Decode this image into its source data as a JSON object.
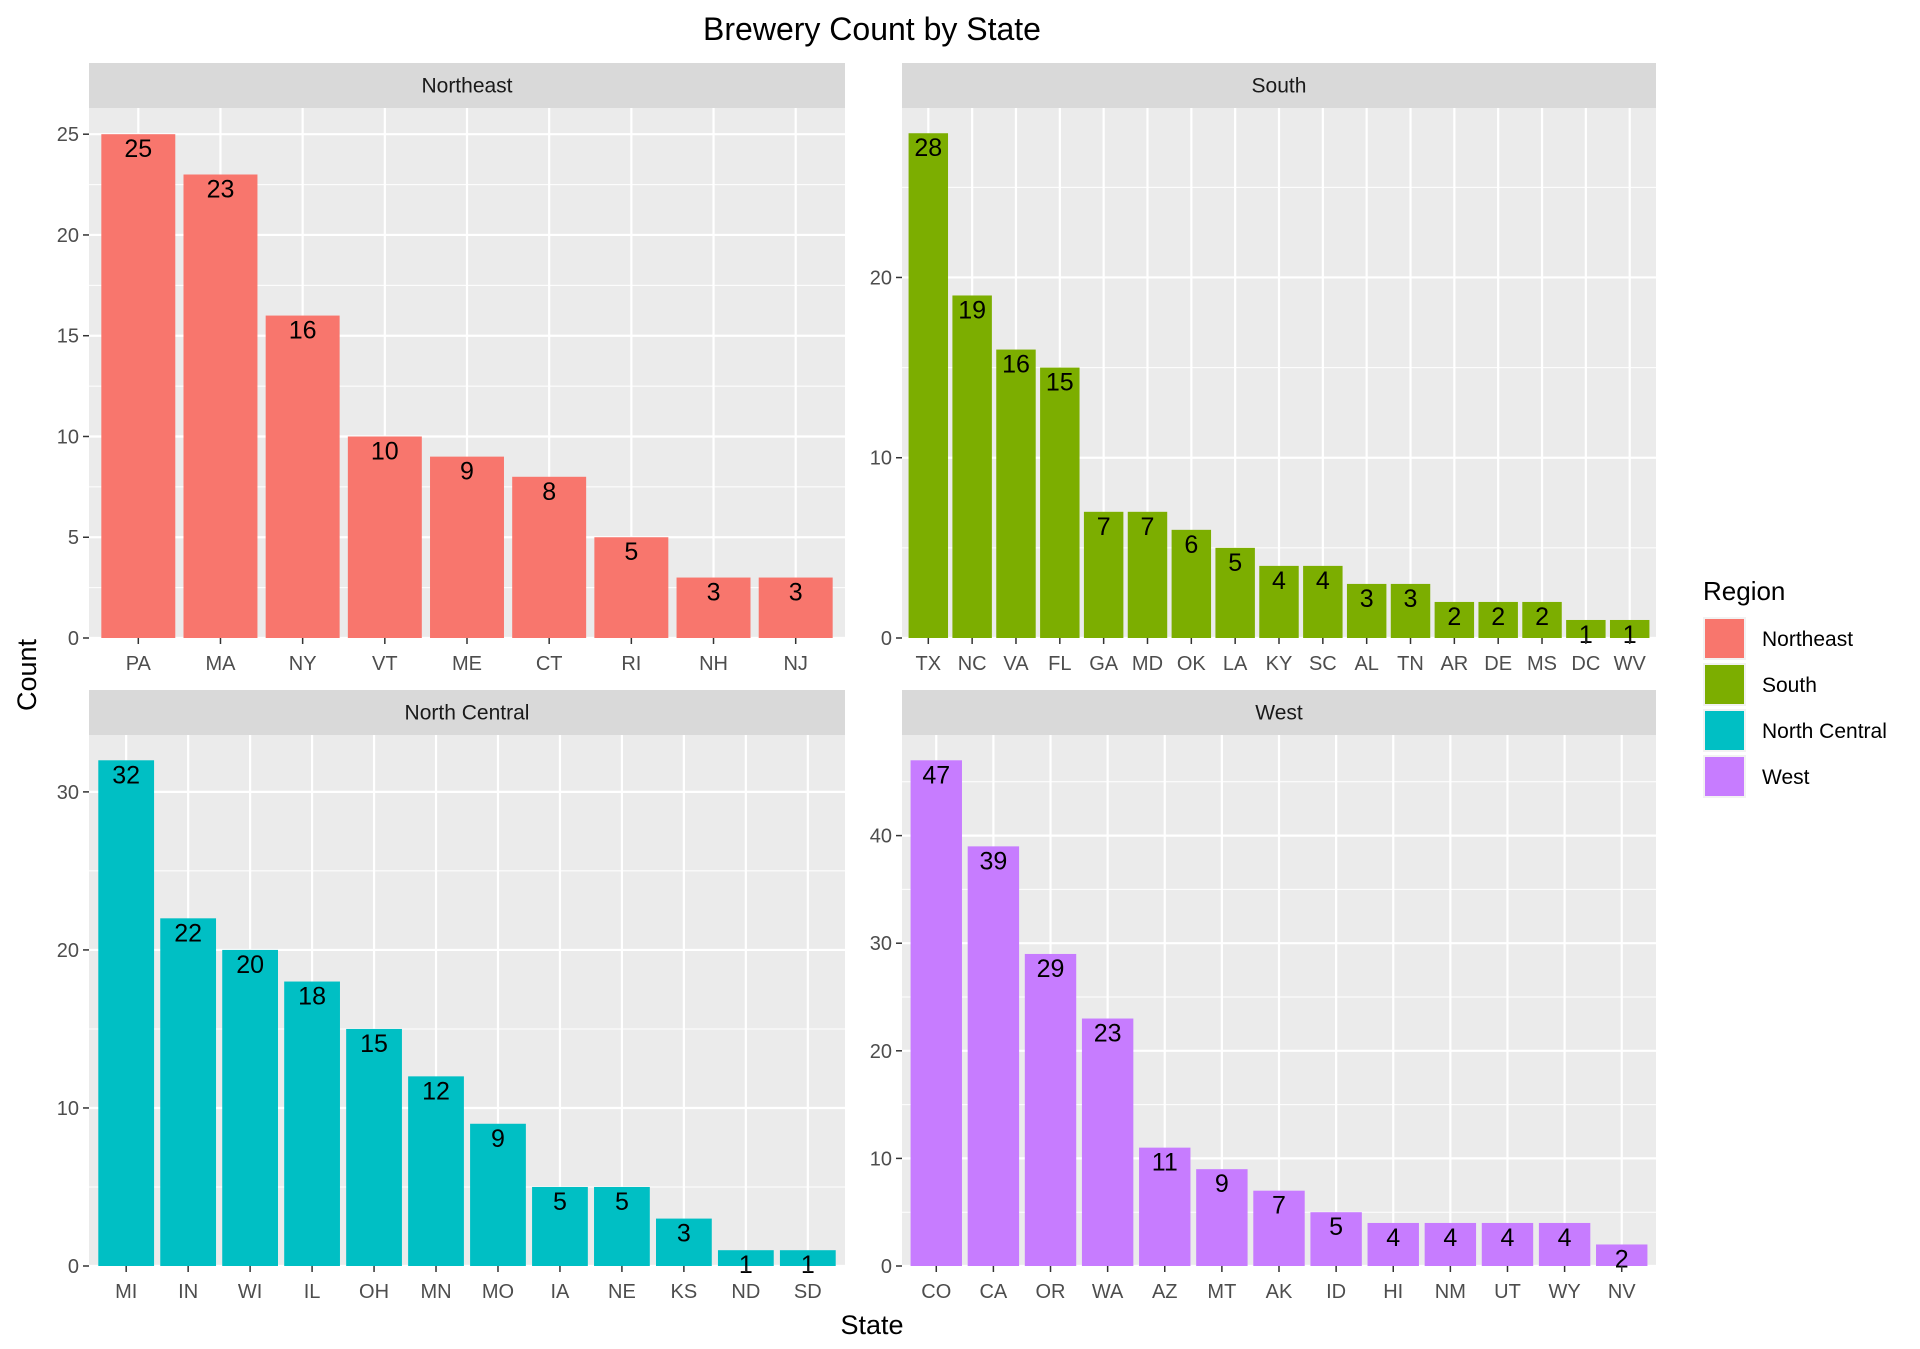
{
  "title": "Brewery Count by State",
  "xlabel": "State",
  "ylabel": "Count",
  "legend": {
    "title": "Region",
    "placement": "right",
    "items": [
      {
        "label": "Northeast",
        "color": "#F8766D"
      },
      {
        "label": "South",
        "color": "#7CAE00"
      },
      {
        "label": "North Central",
        "color": "#00BFC4"
      },
      {
        "label": "West",
        "color": "#C77CFF"
      }
    ]
  },
  "colors": {
    "panel_background": "#EBEBEB",
    "grid": "#FFFFFF",
    "strip_background": "#D9D9D9",
    "axis_text": "#4D4D4D"
  },
  "chart_data": [
    {
      "type": "bar",
      "title": "Northeast",
      "color": "#F8766D",
      "categories": [
        "PA",
        "MA",
        "NY",
        "VT",
        "ME",
        "CT",
        "RI",
        "NH",
        "NJ"
      ],
      "values": [
        25,
        23,
        16,
        10,
        9,
        8,
        5,
        3,
        3
      ],
      "ylim": [
        0,
        26.3
      ],
      "yticks": [
        0,
        5,
        10,
        15,
        20,
        25
      ]
    },
    {
      "type": "bar",
      "title": "South",
      "color": "#7CAE00",
      "categories": [
        "TX",
        "NC",
        "VA",
        "FL",
        "GA",
        "MD",
        "OK",
        "LA",
        "KY",
        "SC",
        "AL",
        "TN",
        "AR",
        "DE",
        "MS",
        "DC",
        "WV"
      ],
      "values": [
        28,
        19,
        16,
        15,
        7,
        7,
        6,
        5,
        4,
        4,
        3,
        3,
        2,
        2,
        2,
        1,
        1
      ],
      "ylim": [
        0,
        29.4
      ],
      "yticks": [
        0,
        10,
        20
      ]
    },
    {
      "type": "bar",
      "title": "North Central",
      "color": "#00BFC4",
      "categories": [
        "MI",
        "IN",
        "WI",
        "IL",
        "OH",
        "MN",
        "MO",
        "IA",
        "NE",
        "KS",
        "ND",
        "SD"
      ],
      "values": [
        32,
        22,
        20,
        18,
        15,
        12,
        9,
        5,
        5,
        3,
        1,
        1
      ],
      "ylim": [
        0,
        33.6
      ],
      "yticks": [
        0,
        10,
        20,
        30
      ]
    },
    {
      "type": "bar",
      "title": "West",
      "color": "#C77CFF",
      "categories": [
        "CO",
        "CA",
        "OR",
        "WA",
        "AZ",
        "MT",
        "AK",
        "ID",
        "HI",
        "NM",
        "UT",
        "WY",
        "NV"
      ],
      "values": [
        47,
        39,
        29,
        23,
        11,
        9,
        7,
        5,
        4,
        4,
        4,
        4,
        2
      ],
      "ylim": [
        0,
        49.35
      ],
      "yticks": [
        0,
        10,
        20,
        30,
        40
      ]
    }
  ]
}
